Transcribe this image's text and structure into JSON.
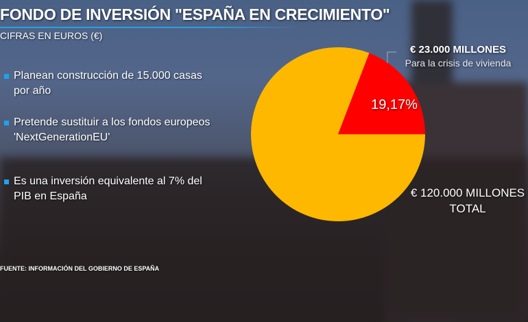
{
  "header": {
    "title": "FONDO DE INVERSIÓN \"ESPAÑA EN CRECIMIENTO\"",
    "subtitle": "CIFRAS EN EUROS (€)"
  },
  "bullets": [
    {
      "line1": "Planean construcción de 15.000 casas",
      "line2": "por año"
    },
    {
      "line1": "Pretende sustituir a los fondos europeos",
      "line2": "'NextGenerationEU'"
    },
    {
      "line1": "Es una inversión equivalente al 7% del",
      "line2": "PIB en España"
    }
  ],
  "source": "FUENTE: INFORMACIÓN DEL GOBIERNO DE ESPAÑA",
  "chart_data": {
    "type": "pie",
    "slices": [
      {
        "label": "Para la crisis de vivienda",
        "value": 23000,
        "percent": 19.17,
        "value_label": "€ 23.000 MILLONES",
        "pct_label": "19,17%",
        "color": "#ff0000"
      },
      {
        "label": "TOTAL",
        "value": 120000,
        "value_label": "€ 120.000 MILLONES",
        "color": "#ffb800"
      }
    ]
  }
}
